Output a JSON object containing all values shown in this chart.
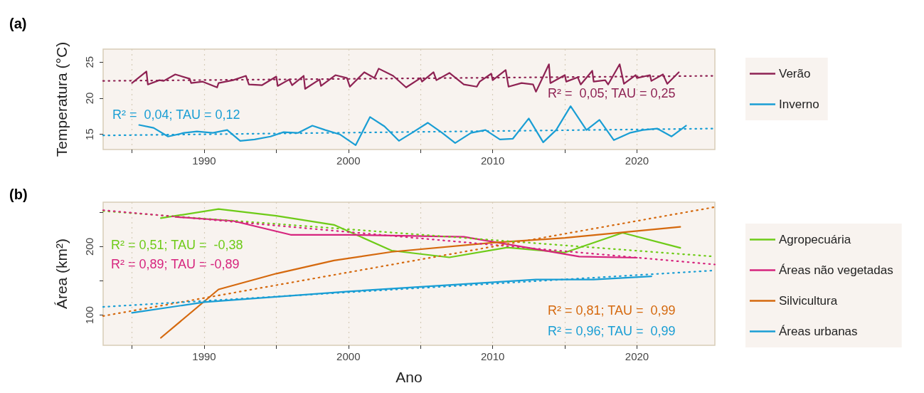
{
  "chart_data": [
    {
      "type": "line",
      "title": "(a)",
      "ylabel": "Temperatura (°C)",
      "xlim": [
        1983,
        2025.4
      ],
      "ylim": [
        12.9,
        26.8
      ],
      "xticks": [
        {
          "value": 1985,
          "label": null
        },
        1990,
        {
          "value": 1995,
          "label": null
        },
        2000,
        {
          "value": 2005,
          "label": null
        },
        2010,
        {
          "value": 2015,
          "label": null
        },
        2020
      ],
      "yticks": [
        15,
        20,
        25
      ],
      "grid": "x",
      "legend": "right",
      "marker": "none",
      "annotations": [
        "R² =  0,05; TAU = 0,25",
        "R² =  0,04; TAU = 0,12"
      ],
      "series": [
        {
          "name": "Verão",
          "color": "#8e2253",
          "x": [
            1985.0,
            1986.0,
            1986.1,
            1986.9,
            1987.2,
            1988.0,
            1989.0,
            1989.1,
            1989.9,
            1990.9,
            1991.0,
            1992.0,
            1992.9,
            1993.1,
            1994.0,
            1995.0,
            1995.1,
            1995.9,
            1996.1,
            1996.9,
            1997.0,
            1998.0,
            1998.1,
            1999.1,
            1999.9,
            2000.1,
            2001.1,
            2001.8,
            2002.1,
            2003.1,
            2004.0,
            2005.0,
            2005.1,
            2005.9,
            2006.1,
            2007.0,
            2008.0,
            2008.9,
            2009.1,
            2009.9,
            2010.0,
            2010.9,
            2011.1,
            2012.0,
            2012.8,
            2013.0,
            2013.9,
            2014.0,
            2015.0,
            2015.1,
            2015.9,
            2016.1,
            2016.9,
            2017.0,
            2017.8,
            2018.0,
            2018.8,
            2019.1,
            2019.9,
            2020.0,
            2020.9,
            2021.0,
            2021.8,
            2022.1,
            2022.9
          ],
          "values": [
            22.1,
            23.7,
            21.9,
            22.5,
            22.4,
            23.3,
            22.7,
            22.1,
            22.3,
            21.5,
            22.1,
            22.5,
            23.1,
            21.9,
            21.8,
            23.0,
            21.7,
            22.6,
            21.8,
            23.1,
            21.3,
            22.6,
            21.7,
            23.2,
            22.8,
            21.6,
            23.6,
            22.8,
            24.1,
            23.1,
            21.5,
            22.8,
            22.3,
            23.6,
            22.5,
            23.5,
            21.9,
            21.6,
            22.3,
            23.4,
            22.5,
            23.9,
            21.6,
            22.1,
            21.9,
            20.9,
            24.7,
            22.1,
            23.2,
            22.3,
            22.9,
            21.9,
            23.8,
            22.3,
            22.5,
            21.9,
            24.7,
            22.0,
            23.2,
            22.8,
            23.2,
            22.4,
            23.3,
            22.0,
            23.6
          ]
        },
        {
          "name": "Inverno",
          "color": "#1a9ed4",
          "x": [
            1985.5,
            1986.5,
            1987.5,
            1988.6,
            1989.5,
            1990.6,
            1991.6,
            1992.5,
            1993.5,
            1994.6,
            1995.5,
            1996.5,
            1997.5,
            1998.4,
            1999.4,
            2000.5,
            2001.5,
            2002.5,
            2003.5,
            2004.4,
            2005.5,
            2006.5,
            2007.4,
            2008.5,
            2009.5,
            2010.5,
            2011.4,
            2012.5,
            2013.5,
            2014.4,
            2015.4,
            2016.5,
            2017.4,
            2018.4,
            2019.5,
            2020.4,
            2021.4,
            2022.4,
            2023.4
          ],
          "values": [
            16.3,
            15.9,
            14.7,
            15.2,
            15.4,
            15.2,
            15.6,
            14.1,
            14.3,
            14.7,
            15.3,
            15.2,
            16.2,
            15.6,
            15.0,
            13.5,
            17.4,
            16.1,
            14.1,
            15.2,
            16.6,
            15.2,
            13.8,
            15.2,
            15.6,
            14.3,
            14.4,
            17.2,
            13.9,
            15.6,
            18.9,
            15.6,
            17.0,
            14.2,
            15.2,
            15.6,
            15.8,
            14.7,
            16.2
          ]
        },
        {
          "color": "#8e2253",
          "line_style": "dotted",
          "x": [
            1983,
            2025.4
          ],
          "values": [
            22.4,
            23.1
          ]
        },
        {
          "color": "#1a9ed4",
          "line_style": "dotted",
          "x": [
            1983,
            2025.4
          ],
          "values": [
            14.85,
            15.8
          ]
        }
      ]
    },
    {
      "type": "line",
      "title": "(b)",
      "xlabel": "Ano",
      "ylabel": "Área (km²)",
      "xlim": [
        1983,
        2025.4
      ],
      "ylim": [
        56,
        265
      ],
      "xticks": [
        {
          "value": 1985,
          "label": null
        },
        1990,
        {
          "value": 1995,
          "label": null
        },
        2000,
        {
          "value": 2005,
          "label": null
        },
        2010,
        {
          "value": 2015,
          "label": null
        },
        2020
      ],
      "yticks": [
        100,
        {
          "value": 150,
          "label": null
        },
        200,
        {
          "value": 250,
          "label": null
        }
      ],
      "grid": "x",
      "legend": "right",
      "marker": "none",
      "annotations": [
        "R² = 0,51; TAU =  -0,38",
        "R² = 0,89; TAU = -0,89",
        "R² = 0,81; TAU =  0,99",
        "R² = 0,96; TAU =  0,99"
      ],
      "series": [
        {
          "name": "Agropecuária",
          "color": "#6ecb18",
          "x": [
            1987,
            1991,
            1995,
            1999,
            2003,
            2007,
            2011,
            2015,
            2019,
            2023
          ],
          "values": [
            241.7,
            255,
            245.2,
            231.9,
            194.3,
            184.4,
            198.9,
            191.4,
            220.3,
            198.3
          ]
        },
        {
          "name": "Áreas não vegetadas",
          "color": "#d6247e",
          "x": [
            1988,
            1992,
            1996,
            2000,
            2008,
            2016,
            2020
          ],
          "values": [
            243.5,
            237.7,
            217.4,
            217.4,
            214.5,
            185.6,
            183.9
          ]
        },
        {
          "name": "Silvicultura",
          "color": "#d5690e",
          "x": [
            1987,
            1991,
            1995,
            1999,
            2003,
            2010,
            2015,
            2023
          ],
          "values": [
            66.9,
            137.6,
            160.7,
            179.8,
            192.5,
            205.8,
            212.8,
            229.0
          ]
        },
        {
          "name": "Áreas urbanas",
          "color": "#1a9ed4",
          "x": [
            1985,
            1990,
            2000,
            2013,
            2017,
            2021
          ],
          "values": [
            103.4,
            119.0,
            134.7,
            152.0,
            152.0,
            156.7
          ]
        },
        {
          "color": "#6ecb18",
          "line_style": "dotted",
          "x": [
            1983,
            2025.4
          ],
          "values": [
            252.1,
            185.6
          ]
        },
        {
          "color": "#d6247e",
          "line_style": "dotted",
          "x": [
            1983,
            2025.4
          ],
          "values": [
            253.3,
            174.0
          ]
        },
        {
          "color": "#d5690e",
          "line_style": "dotted",
          "x": [
            1983,
            2025.4
          ],
          "values": [
            98.8,
            257.9
          ]
        },
        {
          "color": "#1a9ed4",
          "line_style": "dotted",
          "x": [
            1983,
            2025.4
          ],
          "values": [
            112.1,
            165.3
          ]
        }
      ]
    }
  ]
}
